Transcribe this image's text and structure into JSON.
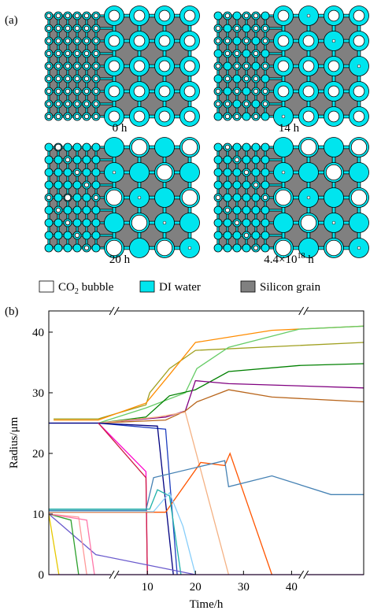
{
  "panel_a": {
    "label": "(a)",
    "captions": [
      {
        "text": "0 h"
      },
      {
        "text": "14 h"
      },
      {
        "text": "20 h"
      },
      {
        "text": "4.4×10",
        "sup": "18",
        "tail": " h"
      }
    ],
    "legend": [
      {
        "text": "CO",
        "sub": "2",
        "tail": " bubble"
      },
      {
        "text": "DI water"
      },
      {
        "text": "Silicon grain"
      }
    ]
  },
  "chart_data": {
    "type": "line",
    "label": "(b)",
    "x_label": "Time/h",
    "y_label": "Radius/μm",
    "xlim": [
      -10.5,
      55
    ],
    "ylim": [
      0,
      43.5
    ],
    "xticks": [
      10,
      20,
      30,
      40
    ],
    "yticks": [
      0,
      10,
      20,
      30,
      40
    ],
    "x_breaks": [
      3.1,
      42.5
    ],
    "series": [
      {
        "color": "#a0a020",
        "x": [
          -9.5,
          -0.2,
          9.7,
          10.5,
          14.6,
          20,
          55
        ],
        "values": [
          25.7,
          25.7,
          28,
          30,
          34,
          37,
          38.3
        ]
      },
      {
        "color": "#ff8c00",
        "x": [
          -9.5,
          -0.2,
          9.7,
          14.6,
          20,
          35.9,
          55
        ],
        "values": [
          25.5,
          25.5,
          28.3,
          33,
          38.3,
          40.3,
          41
        ]
      },
      {
        "color": "#66cc66",
        "x": [
          -0.2,
          9.7,
          17.9,
          20.3,
          26.9,
          41.6,
          55
        ],
        "values": [
          25,
          27.5,
          30,
          34,
          37.5,
          40.5,
          41
        ]
      },
      {
        "color": "#008000",
        "x": [
          -0.2,
          9.7,
          14.6,
          20,
          26.9,
          41.6,
          55
        ],
        "values": [
          25,
          26,
          29.5,
          30.5,
          33.5,
          34.5,
          34.8
        ]
      },
      {
        "color": "#800080",
        "x": [
          -0.2,
          13.8,
          17.9,
          20,
          26.9,
          55
        ],
        "values": [
          25,
          26,
          27,
          32,
          31.5,
          30.8
        ]
      },
      {
        "color": "#b8651b",
        "x": [
          -0.2,
          13.8,
          17.9,
          20.3,
          26.9,
          35.9,
          55
        ],
        "values": [
          25,
          25.5,
          27,
          28.5,
          30.5,
          29.3,
          28.5
        ]
      },
      {
        "color": "#f4b183",
        "x": [
          -0.2,
          12.1,
          17.9,
          26.9
        ],
        "values": [
          25,
          26,
          26.8,
          0
        ]
      },
      {
        "color": "#1f3fbf",
        "x": [
          -10.5,
          -0.2,
          13.8,
          16.2
        ],
        "values": [
          25,
          25,
          24,
          0
        ]
      },
      {
        "color": "#000080",
        "x": [
          -10.5,
          -0.2,
          12.1,
          15.4
        ],
        "values": [
          25,
          25,
          24.5,
          0
        ]
      },
      {
        "color": "#ff00cc",
        "x": [
          -0.2,
          9.7,
          10.0
        ],
        "values": [
          25,
          17,
          0
        ]
      },
      {
        "color": "#cc2244",
        "x": [
          -0.2,
          9.7,
          10.0
        ],
        "values": [
          25,
          16,
          0
        ]
      },
      {
        "color": "#ff5500",
        "x": [
          -10.5,
          13.8,
          21.1,
          26.1,
          27.2,
          35.9
        ],
        "values": [
          10.3,
          10.3,
          18.5,
          18,
          20,
          0
        ]
      },
      {
        "color": "#4682b4",
        "x": [
          -10.5,
          9.7,
          11.3,
          26.1,
          26.9,
          35.9,
          48.2,
          55
        ],
        "values": [
          10.6,
          10.6,
          16,
          18.8,
          14.5,
          16.3,
          13.2,
          13.2
        ]
      },
      {
        "color": "#20b2aa",
        "x": [
          -10.5,
          10.5,
          12.1,
          14.6,
          17.0
        ],
        "values": [
          10.8,
          10.8,
          14,
          13,
          0
        ]
      },
      {
        "color": "#87cefa",
        "x": [
          -10.5,
          11.3,
          14.6,
          17.4,
          20.0
        ],
        "values": [
          10.4,
          10.4,
          13.5,
          8,
          0
        ]
      },
      {
        "color": "#6a5acd",
        "x": [
          -10.5,
          -0.7,
          20.0
        ],
        "values": [
          10,
          3.3,
          0
        ]
      },
      {
        "color": "#e6c800",
        "x": [
          -10.5,
          -8.4
        ],
        "values": [
          10,
          0
        ]
      },
      {
        "color": "#2ca02c",
        "x": [
          -10.5,
          -5.9,
          -4.3
        ],
        "values": [
          10,
          9,
          0
        ]
      },
      {
        "color": "#ff9999",
        "x": [
          -10.5,
          -4.3,
          -2.6
        ],
        "values": [
          10,
          9.5,
          0
        ]
      },
      {
        "color": "#ff77aa",
        "x": [
          -10.5,
          -2.6,
          -1.0
        ],
        "values": [
          10,
          9,
          0
        ]
      },
      {
        "color": "#9400d3",
        "x": [
          -10.5,
          55
        ],
        "values": [
          0,
          0
        ]
      }
    ]
  }
}
